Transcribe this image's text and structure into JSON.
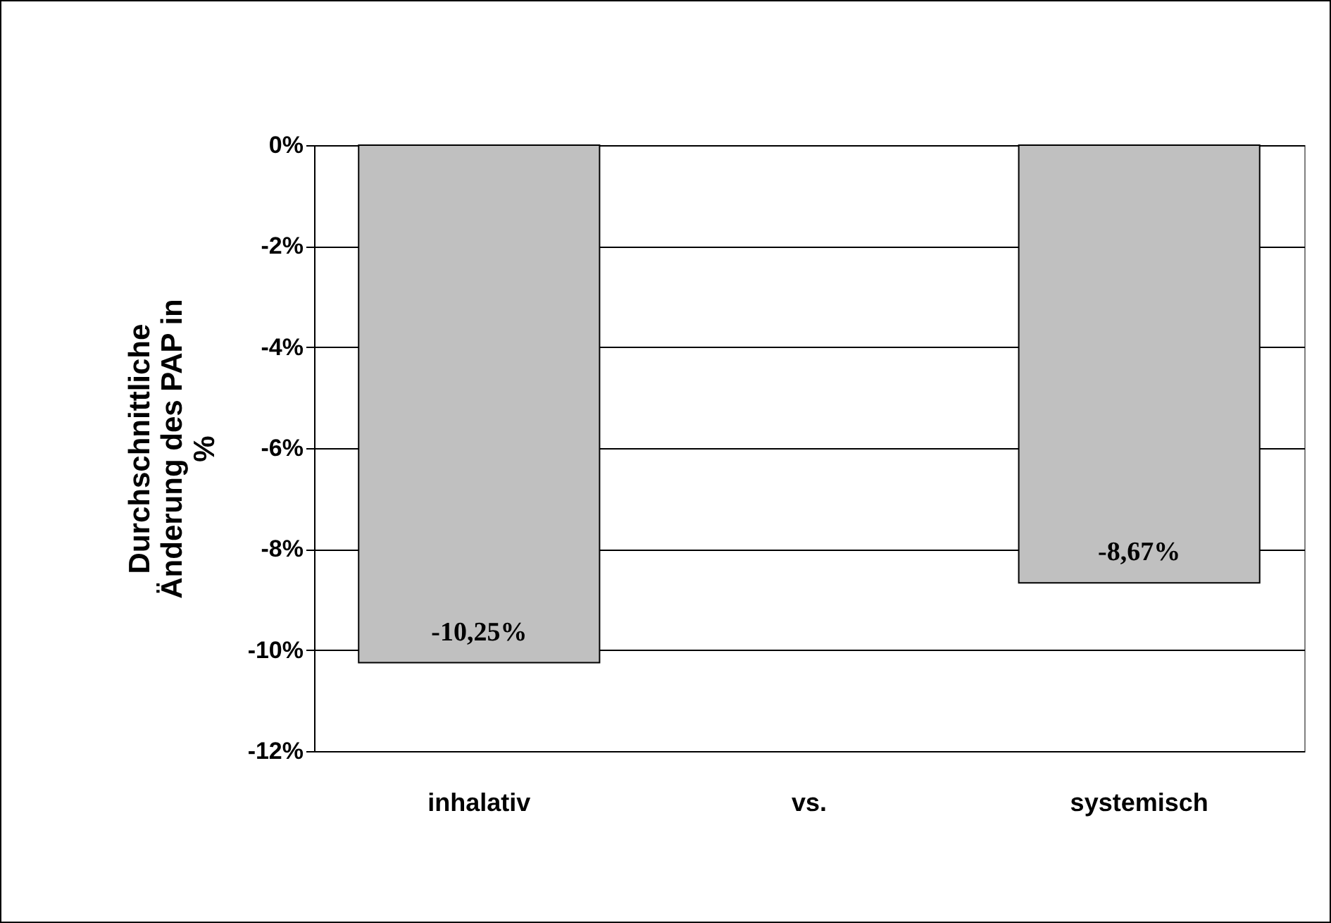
{
  "chart_data": {
    "type": "bar",
    "ylabel": "Durchschnittliche Änderung des PAP in %",
    "categories": [
      "inhalativ",
      "vs.",
      "systemisch"
    ],
    "values": [
      -10.25,
      null,
      -8.67
    ],
    "value_labels": [
      "-10,25%",
      null,
      "-8,67%"
    ],
    "color": "#c0c0c0",
    "ylim": [
      -12,
      0
    ],
    "yticks": [
      {
        "value": 0,
        "label": "0%"
      },
      {
        "value": -2,
        "label": "-2%"
      },
      {
        "value": -4,
        "label": "-4%"
      },
      {
        "value": -6,
        "label": "-6%"
      },
      {
        "value": -8,
        "label": "-8%"
      },
      {
        "value": -10,
        "label": "-10%"
      },
      {
        "value": -12,
        "label": "-12%"
      }
    ],
    "grid": "y"
  }
}
